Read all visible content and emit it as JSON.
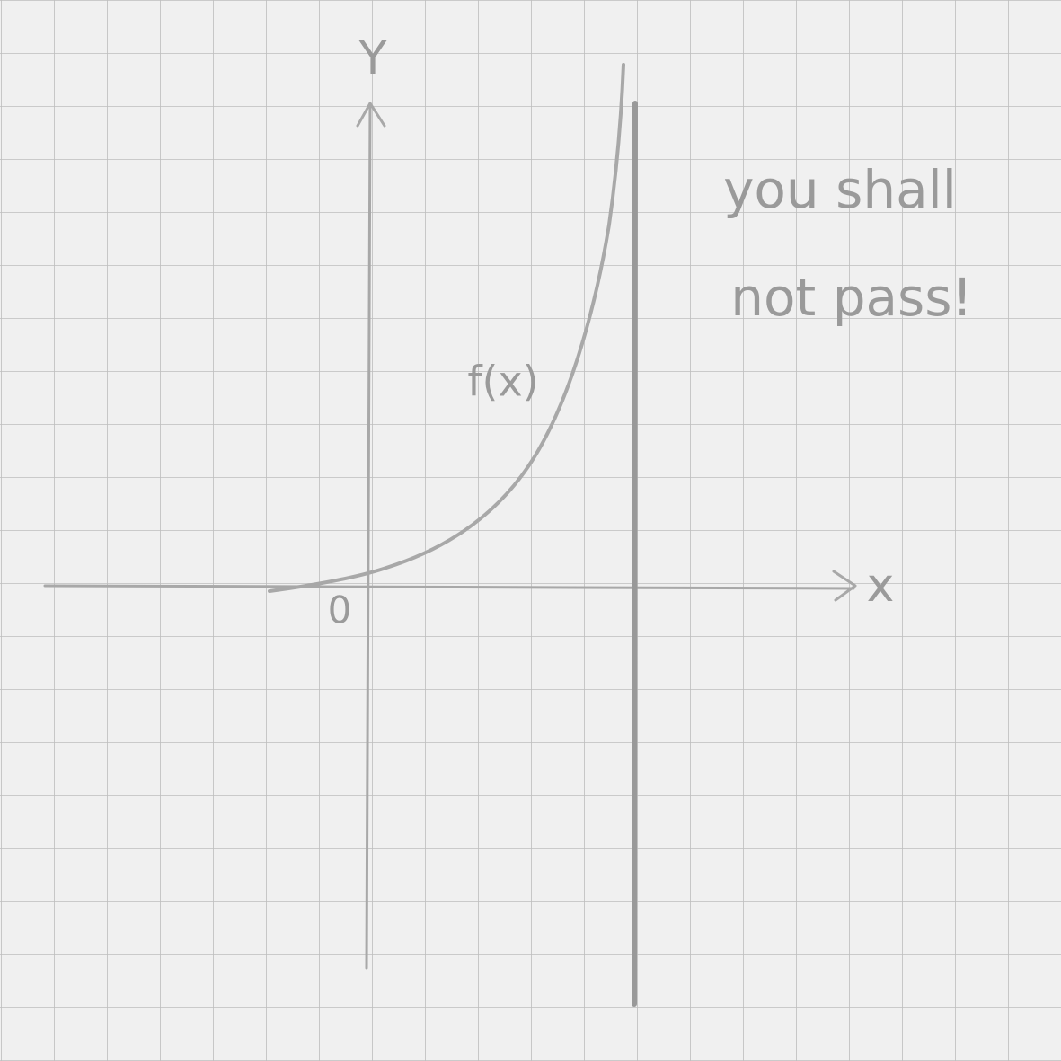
{
  "axes": {
    "y_label": "Y",
    "x_label": "x",
    "origin_label": "0"
  },
  "curve": {
    "label": "f(x)"
  },
  "annotation": {
    "lines": [
      "you shall",
      "not pass!"
    ]
  }
}
